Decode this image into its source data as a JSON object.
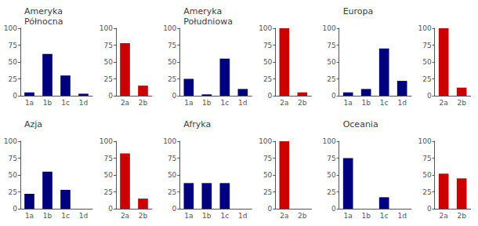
{
  "chart_data": [
    {
      "type": "bar",
      "title": "Ameryka\nPółnocna",
      "categories": [
        "1a",
        "1b",
        "1c",
        "1d"
      ],
      "values": [
        5,
        62,
        30,
        3
      ],
      "color": "#00007F",
      "ylim": [
        0,
        100
      ],
      "yticks": [
        0,
        25,
        50,
        75,
        100
      ],
      "grid": false
    },
    {
      "type": "bar",
      "categories": [
        "2a",
        "2b"
      ],
      "values": [
        78,
        15
      ],
      "color": "#CC0000",
      "ylim": [
        0,
        100
      ],
      "yticks": [
        0,
        25,
        50,
        75,
        100
      ],
      "grid": false
    },
    {
      "type": "bar",
      "title": "Ameryka\nPołudniowa",
      "categories": [
        "1a",
        "1b",
        "1c",
        "1d"
      ],
      "values": [
        25,
        2,
        55,
        10
      ],
      "color": "#00007F",
      "ylim": [
        0,
        100
      ],
      "yticks": [
        0,
        25,
        50,
        75,
        100
      ],
      "grid": false
    },
    {
      "type": "bar",
      "categories": [
        "2a",
        "2b"
      ],
      "values": [
        100,
        5
      ],
      "color": "#CC0000",
      "ylim": [
        0,
        100
      ],
      "yticks": [
        0,
        25,
        50,
        75,
        100
      ],
      "grid": false
    },
    {
      "type": "bar",
      "title": "Europa",
      "categories": [
        "1a",
        "1b",
        "1c",
        "1d"
      ],
      "values": [
        5,
        10,
        70,
        22
      ],
      "color": "#00007F",
      "ylim": [
        0,
        100
      ],
      "yticks": [
        0,
        25,
        50,
        75,
        100
      ],
      "grid": false
    },
    {
      "type": "bar",
      "categories": [
        "2a",
        "2b"
      ],
      "values": [
        100,
        12
      ],
      "color": "#CC0000",
      "ylim": [
        0,
        100
      ],
      "yticks": [
        0,
        25,
        50,
        75,
        100
      ],
      "grid": false
    },
    {
      "type": "bar",
      "title": "Azja",
      "categories": [
        "1a",
        "1b",
        "1c",
        "1d"
      ],
      "values": [
        22,
        55,
        28,
        0
      ],
      "color": "#00007F",
      "ylim": [
        0,
        100
      ],
      "yticks": [
        0,
        25,
        50,
        75,
        100
      ],
      "grid": false
    },
    {
      "type": "bar",
      "categories": [
        "2a",
        "2b"
      ],
      "values": [
        82,
        15
      ],
      "color": "#CC0000",
      "ylim": [
        0,
        100
      ],
      "yticks": [
        0,
        25,
        50,
        75,
        100
      ],
      "grid": false
    },
    {
      "type": "bar",
      "title": "Afryka",
      "categories": [
        "1a",
        "1b",
        "1c",
        "1d"
      ],
      "values": [
        38,
        38,
        38,
        0
      ],
      "color": "#00007F",
      "ylim": [
        0,
        100
      ],
      "yticks": [
        0,
        25,
        50,
        75,
        100
      ],
      "grid": false
    },
    {
      "type": "bar",
      "categories": [
        "2a",
        "2b"
      ],
      "values": [
        100,
        0
      ],
      "color": "#CC0000",
      "ylim": [
        0,
        100
      ],
      "yticks": [
        0,
        25,
        50,
        75,
        100
      ],
      "grid": false
    },
    {
      "type": "bar",
      "title": "Oceania",
      "categories": [
        "1a",
        "1b",
        "1c",
        "1d"
      ],
      "values": [
        75,
        0,
        17,
        0
      ],
      "color": "#00007F",
      "ylim": [
        0,
        100
      ],
      "yticks": [
        0,
        25,
        50,
        75,
        100
      ],
      "grid": false
    },
    {
      "type": "bar",
      "categories": [
        "2a",
        "2b"
      ],
      "values": [
        52,
        45
      ],
      "color": "#CC0000",
      "ylim": [
        0,
        100
      ],
      "yticks": [
        0,
        25,
        50,
        75,
        100
      ],
      "grid": false
    }
  ]
}
